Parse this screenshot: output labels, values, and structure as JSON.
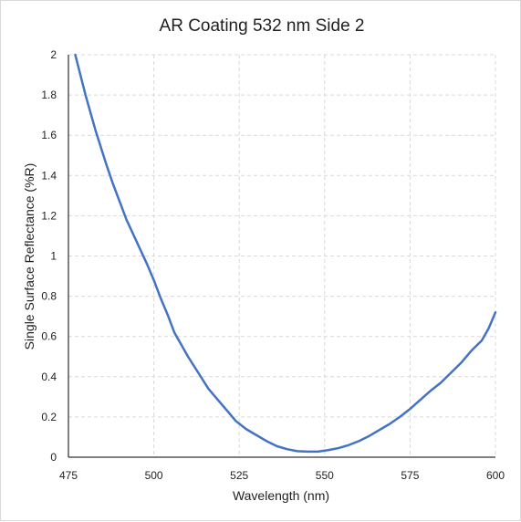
{
  "chart_data": {
    "type": "line",
    "title": "AR Coating 532 nm Side 2",
    "xlabel": "Wavelength (nm)",
    "ylabel": "Single Surface Reflectance (%R)",
    "xlim": [
      475,
      600
    ],
    "ylim": [
      0,
      2
    ],
    "xticks": [
      475,
      500,
      525,
      550,
      575,
      600
    ],
    "xtick_labels": [
      "475",
      "500",
      "525",
      "550",
      "575",
      "600"
    ],
    "yticks": [
      0,
      0.2,
      0.4,
      0.6,
      0.8,
      1,
      1.2,
      1.4,
      1.6,
      1.8,
      2
    ],
    "ytick_labels": [
      "0",
      "0.2",
      "0.4",
      "0.6",
      "0.8",
      "1",
      "1.2",
      "1.4",
      "1.6",
      "1.8",
      "2"
    ],
    "grid": true,
    "legend": "none",
    "series": [
      {
        "color": "#4472c4",
        "x": [
          477,
          480,
          483,
          486,
          488,
          490,
          492,
          495,
          498,
          500,
          502,
          504,
          506,
          508,
          510,
          513,
          516,
          519,
          522,
          524,
          527,
          530,
          533,
          536,
          539,
          542,
          545,
          548,
          551,
          554,
          557,
          560,
          563,
          566,
          569,
          572,
          575,
          578,
          581,
          584,
          587,
          590,
          593,
          596,
          598,
          600
        ],
        "y": [
          2.0,
          1.8,
          1.62,
          1.46,
          1.36,
          1.27,
          1.18,
          1.07,
          0.96,
          0.88,
          0.79,
          0.71,
          0.62,
          0.56,
          0.5,
          0.42,
          0.34,
          0.28,
          0.22,
          0.18,
          0.14,
          0.11,
          0.08,
          0.055,
          0.04,
          0.03,
          0.028,
          0.028,
          0.035,
          0.045,
          0.06,
          0.08,
          0.105,
          0.135,
          0.165,
          0.2,
          0.24,
          0.285,
          0.33,
          0.37,
          0.42,
          0.47,
          0.53,
          0.58,
          0.64,
          0.72
        ]
      }
    ]
  }
}
